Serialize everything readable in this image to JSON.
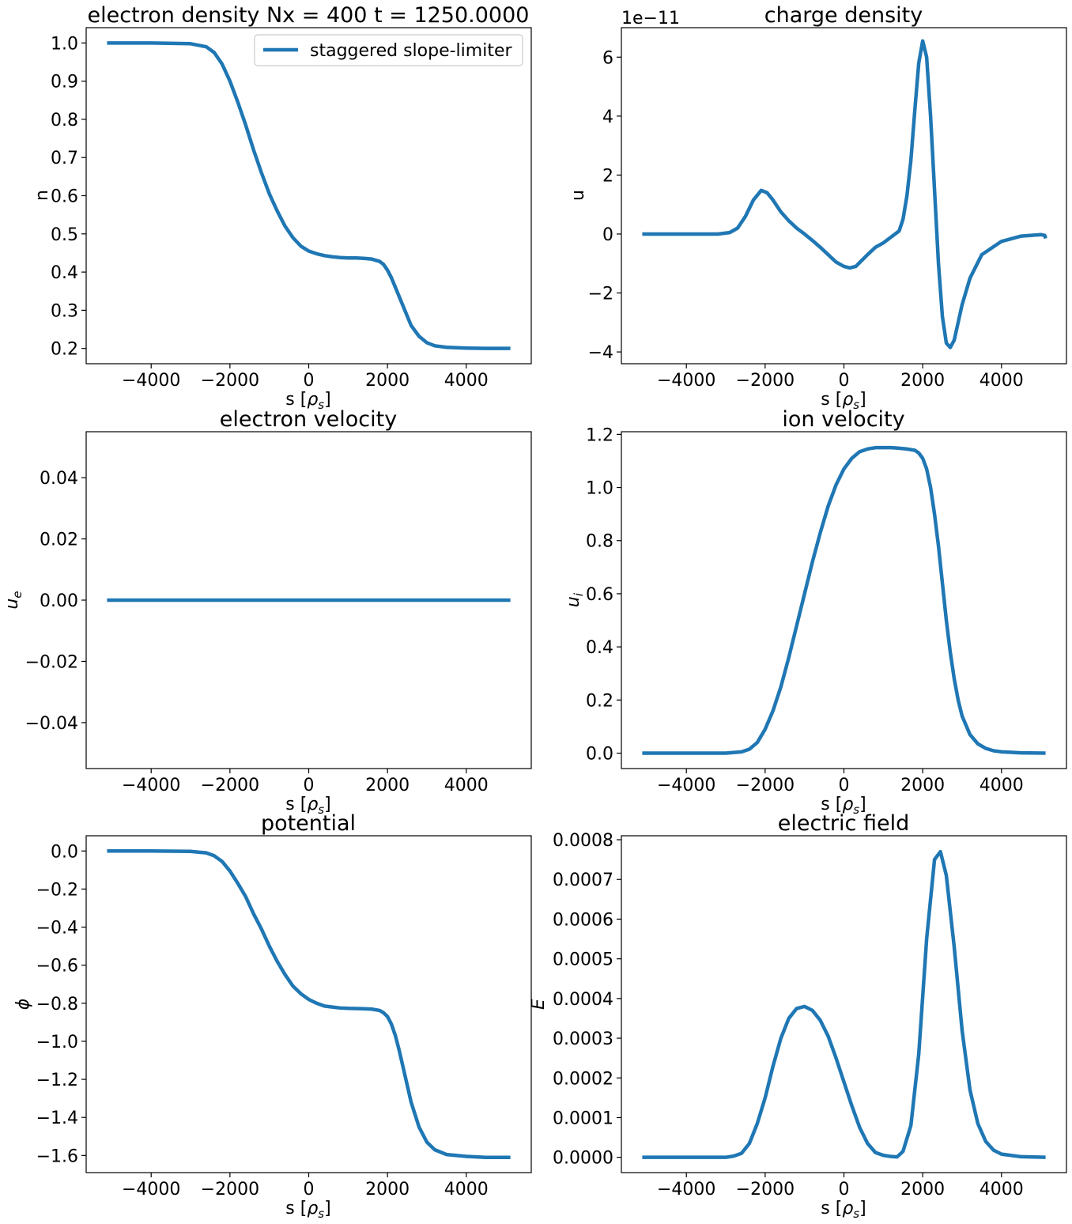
{
  "figure": {
    "legend": {
      "label": "staggered slope-limiter",
      "placement": "upper right",
      "panel": 0
    }
  },
  "chart_data": [
    {
      "type": "line",
      "title": "electron density Nx = 400 t = 1250.0000",
      "xlabel": "s [ρs]",
      "ylabel": "n",
      "xlim": [
        -5650,
        5650
      ],
      "ylim": [
        0.16,
        1.04
      ],
      "xticks": [
        -4000,
        -2000,
        0,
        2000,
        4000
      ],
      "xtick_labels": [
        "−4000",
        "−2000",
        "0",
        "2000",
        "4000"
      ],
      "yticks": [
        0.2,
        0.3,
        0.4,
        0.5,
        0.6,
        0.7,
        0.8,
        0.9,
        1.0
      ],
      "ytick_labels": [
        "0.2",
        "0.3",
        "0.4",
        "0.5",
        "0.6",
        "0.7",
        "0.8",
        "0.9",
        "1.0"
      ],
      "grid": false,
      "series": [
        {
          "name": "staggered slope-limiter",
          "color": "#1f77b4",
          "x": [
            -5120,
            -4000,
            -3000,
            -2600,
            -2400,
            -2200,
            -2000,
            -1800,
            -1600,
            -1400,
            -1200,
            -1000,
            -800,
            -600,
            -400,
            -200,
            0,
            200,
            400,
            600,
            800,
            1000,
            1200,
            1400,
            1600,
            1800,
            1900,
            2000,
            2100,
            2200,
            2300,
            2400,
            2500,
            2600,
            2800,
            3000,
            3200,
            3500,
            4000,
            4500,
            5120
          ],
          "y": [
            1.0,
            1.0,
            0.998,
            0.99,
            0.975,
            0.945,
            0.9,
            0.845,
            0.785,
            0.72,
            0.66,
            0.605,
            0.56,
            0.52,
            0.49,
            0.468,
            0.455,
            0.448,
            0.443,
            0.44,
            0.438,
            0.437,
            0.437,
            0.436,
            0.434,
            0.428,
            0.42,
            0.405,
            0.385,
            0.36,
            0.335,
            0.31,
            0.285,
            0.26,
            0.232,
            0.215,
            0.207,
            0.203,
            0.201,
            0.2,
            0.2
          ]
        }
      ]
    },
    {
      "type": "line",
      "title": "charge density",
      "offset_text": "1e−11",
      "xlabel": "s [ρs]",
      "ylabel": "u",
      "xlim": [
        -5650,
        5650
      ],
      "ylim": [
        -4.4,
        7.0
      ],
      "xticks": [
        -4000,
        -2000,
        0,
        2000,
        4000
      ],
      "xtick_labels": [
        "−4000",
        "−2000",
        "0",
        "2000",
        "4000"
      ],
      "yticks": [
        -4,
        -2,
        0,
        2,
        4,
        6
      ],
      "ytick_labels": [
        "−4",
        "−2",
        "0",
        "2",
        "4",
        "6"
      ],
      "grid": false,
      "series": [
        {
          "color": "#1f77b4",
          "x": [
            -5120,
            -4000,
            -3200,
            -2900,
            -2700,
            -2500,
            -2300,
            -2100,
            -1950,
            -1800,
            -1600,
            -1400,
            -1200,
            -1000,
            -800,
            -600,
            -400,
            -200,
            0,
            150,
            300,
            450,
            600,
            800,
            1000,
            1100,
            1200,
            1300,
            1400,
            1500,
            1600,
            1700,
            1800,
            1900,
            2000,
            2100,
            2200,
            2300,
            2400,
            2500,
            2600,
            2700,
            2800,
            2900,
            3000,
            3200,
            3500,
            4000,
            4500,
            5000,
            5100,
            5120
          ],
          "y": [
            0,
            0,
            0,
            0.05,
            0.2,
            0.6,
            1.15,
            1.48,
            1.4,
            1.15,
            0.75,
            0.45,
            0.2,
            0.0,
            -0.22,
            -0.45,
            -0.7,
            -0.95,
            -1.1,
            -1.15,
            -1.1,
            -0.9,
            -0.7,
            -0.45,
            -0.3,
            -0.2,
            -0.1,
            0.0,
            0.1,
            0.5,
            1.3,
            2.5,
            4.2,
            5.8,
            6.55,
            6.0,
            4.0,
            1.5,
            -1.0,
            -2.8,
            -3.7,
            -3.85,
            -3.6,
            -3.0,
            -2.4,
            -1.5,
            -0.7,
            -0.25,
            -0.07,
            -0.02,
            -0.05,
            -0.15
          ]
        }
      ]
    },
    {
      "type": "line",
      "title": "electron velocity",
      "xlabel": "s [ρs]",
      "ylabel": "ue",
      "xlim": [
        -5650,
        5650
      ],
      "ylim": [
        -0.055,
        0.055
      ],
      "xticks": [
        -4000,
        -2000,
        0,
        2000,
        4000
      ],
      "xtick_labels": [
        "−4000",
        "−2000",
        "0",
        "2000",
        "4000"
      ],
      "yticks": [
        -0.04,
        -0.02,
        0.0,
        0.02,
        0.04
      ],
      "ytick_labels": [
        "−0.04",
        "−0.02",
        "0.00",
        "0.02",
        "0.04"
      ],
      "grid": false,
      "series": [
        {
          "color": "#1f77b4",
          "x": [
            -5120,
            5120
          ],
          "y": [
            0.0,
            0.0
          ]
        }
      ]
    },
    {
      "type": "line",
      "title": "ion velocity",
      "xlabel": "s [ρs]",
      "ylabel": "ui",
      "xlim": [
        -5650,
        5650
      ],
      "ylim": [
        -0.058,
        1.21
      ],
      "xticks": [
        -4000,
        -2000,
        0,
        2000,
        4000
      ],
      "xtick_labels": [
        "−4000",
        "−2000",
        "0",
        "2000",
        "4000"
      ],
      "yticks": [
        0.0,
        0.2,
        0.4,
        0.6,
        0.8,
        1.0,
        1.2
      ],
      "ytick_labels": [
        "0.0",
        "0.2",
        "0.4",
        "0.6",
        "0.8",
        "1.0",
        "1.2"
      ],
      "grid": false,
      "series": [
        {
          "color": "#1f77b4",
          "x": [
            -5120,
            -3000,
            -2600,
            -2400,
            -2200,
            -2000,
            -1800,
            -1600,
            -1400,
            -1200,
            -1000,
            -800,
            -600,
            -400,
            -200,
            0,
            200,
            400,
            600,
            800,
            1000,
            1200,
            1400,
            1600,
            1800,
            1900,
            2000,
            2100,
            2200,
            2300,
            2400,
            2500,
            2600,
            2700,
            2800,
            2900,
            3000,
            3200,
            3400,
            3600,
            3800,
            4000,
            4500,
            5120
          ],
          "y": [
            0.0,
            0.0,
            0.005,
            0.015,
            0.04,
            0.09,
            0.16,
            0.25,
            0.36,
            0.48,
            0.6,
            0.72,
            0.83,
            0.93,
            1.01,
            1.07,
            1.11,
            1.135,
            1.145,
            1.15,
            1.15,
            1.15,
            1.148,
            1.145,
            1.14,
            1.13,
            1.11,
            1.07,
            1.0,
            0.9,
            0.78,
            0.64,
            0.5,
            0.38,
            0.28,
            0.2,
            0.14,
            0.07,
            0.035,
            0.018,
            0.009,
            0.005,
            0.001,
            0.0
          ]
        }
      ]
    },
    {
      "type": "line",
      "title": "potential",
      "xlabel": "s [ρs]",
      "ylabel": "ϕ",
      "xlim": [
        -5650,
        5650
      ],
      "ylim": [
        -1.69,
        0.08
      ],
      "xticks": [
        -4000,
        -2000,
        0,
        2000,
        4000
      ],
      "xtick_labels": [
        "−4000",
        "−2000",
        "0",
        "2000",
        "4000"
      ],
      "yticks": [
        0.0,
        -0.2,
        -0.4,
        -0.6,
        -0.8,
        -1.0,
        -1.2,
        -1.4,
        -1.6
      ],
      "ytick_labels": [
        "0.0",
        "−0.2",
        "−0.4",
        "−0.6",
        "−0.8",
        "−1.0",
        "−1.2",
        "−1.4",
        "−1.6"
      ],
      "grid": false,
      "series": [
        {
          "color": "#1f77b4",
          "x": [
            -5120,
            -4000,
            -3000,
            -2600,
            -2400,
            -2200,
            -2000,
            -1800,
            -1600,
            -1400,
            -1200,
            -1000,
            -800,
            -600,
            -400,
            -200,
            0,
            200,
            400,
            600,
            800,
            1000,
            1200,
            1400,
            1600,
            1800,
            1900,
            2000,
            2100,
            2200,
            2300,
            2400,
            2500,
            2600,
            2800,
            3000,
            3200,
            3500,
            4000,
            4500,
            5120
          ],
          "y": [
            0.0,
            0.0,
            -0.002,
            -0.01,
            -0.025,
            -0.055,
            -0.105,
            -0.17,
            -0.24,
            -0.33,
            -0.41,
            -0.5,
            -0.58,
            -0.65,
            -0.71,
            -0.75,
            -0.78,
            -0.8,
            -0.815,
            -0.82,
            -0.825,
            -0.827,
            -0.828,
            -0.829,
            -0.831,
            -0.838,
            -0.85,
            -0.87,
            -0.91,
            -0.97,
            -1.05,
            -1.14,
            -1.23,
            -1.32,
            -1.45,
            -1.53,
            -1.57,
            -1.595,
            -1.605,
            -1.61,
            -1.61
          ]
        }
      ]
    },
    {
      "type": "line",
      "title": "electric field",
      "xlabel": "s [ρs]",
      "ylabel": "E",
      "xlim": [
        -5650,
        5650
      ],
      "ylim": [
        -3.85e-05,
        0.00081
      ],
      "xticks": [
        -4000,
        -2000,
        0,
        2000,
        4000
      ],
      "xtick_labels": [
        "−4000",
        "−2000",
        "0",
        "2000",
        "4000"
      ],
      "yticks": [
        0.0,
        0.0001,
        0.0002,
        0.0003,
        0.0004,
        0.0005,
        0.0006,
        0.0007,
        0.0008
      ],
      "ytick_labels": [
        "0.0000",
        "0.0001",
        "0.0002",
        "0.0003",
        "0.0004",
        "0.0005",
        "0.0006",
        "0.0007",
        "0.0008"
      ],
      "grid": false,
      "series": [
        {
          "color": "#1f77b4",
          "x": [
            -5120,
            -3000,
            -2800,
            -2600,
            -2400,
            -2200,
            -2000,
            -1800,
            -1600,
            -1400,
            -1200,
            -1000,
            -800,
            -600,
            -400,
            -200,
            0,
            200,
            400,
            600,
            800,
            1000,
            1200,
            1350,
            1500,
            1700,
            1900,
            2100,
            2300,
            2450,
            2600,
            2800,
            3000,
            3200,
            3400,
            3600,
            3800,
            4000,
            4500,
            5120
          ],
          "y": [
            0.0,
            0.0,
            3e-06,
            1e-05,
            3.5e-05,
            8.5e-05,
            0.00015,
            0.00023,
            0.0003,
            0.00035,
            0.000375,
            0.00038,
            0.00037,
            0.000345,
            0.000305,
            0.00025,
            0.00019,
            0.00013,
            7.5e-05,
            3.5e-05,
            1.2e-05,
            5e-06,
            2e-06,
            1e-06,
            1.5e-05,
            8e-05,
            0.00026,
            0.00055,
            0.00075,
            0.00077,
            0.00071,
            0.00053,
            0.00032,
            0.00017,
            8.5e-05,
            4e-05,
            1.8e-05,
            8e-06,
            1.5e-06,
            0.0
          ]
        }
      ]
    }
  ]
}
